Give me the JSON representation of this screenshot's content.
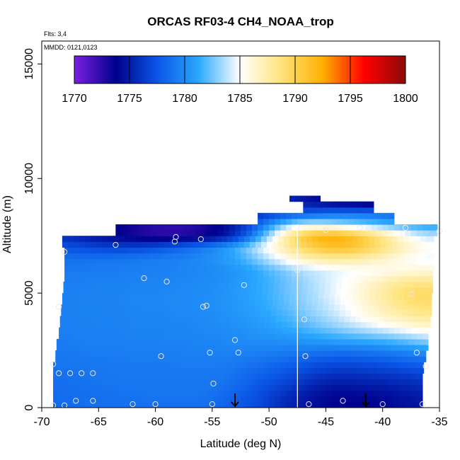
{
  "chart_data": {
    "type": "heatmap",
    "title": "ORCAS RF03-4 CH4_NOAA_trop",
    "annotations": {
      "flights": "Flts: 3,4",
      "dates": "MMDD: 0121,0123"
    },
    "xlabel": "Latitude (deg N)",
    "ylabel": "Altitude (m)",
    "xlim": [
      -70,
      -35
    ],
    "ylim": [
      0,
      16000
    ],
    "x_ticks": [
      -70,
      -65,
      -60,
      -55,
      -50,
      -45,
      -40,
      -35
    ],
    "y_ticks": [
      0,
      5000,
      10000,
      15000
    ],
    "colorbar": {
      "ticks": [
        1770,
        1775,
        1780,
        1785,
        1790,
        1795,
        1800
      ],
      "range": [
        1770,
        1800
      ],
      "colors": [
        "#7a1fe0",
        "#00008c",
        "#0a55e6",
        "#2aa8ff",
        "#ffffff",
        "#ffe37a",
        "#ffb000",
        "#ff0000",
        "#8c0a0a"
      ],
      "placement": "top"
    },
    "field": {
      "lat": [
        -69,
        -68,
        -67,
        -66,
        -65,
        -64,
        -63,
        -62,
        -61,
        -60,
        -59,
        -58,
        -57,
        -56,
        -55,
        -54,
        -53,
        -52,
        -51,
        -50,
        -49,
        -48,
        -47,
        -46,
        -45,
        -44,
        -43,
        -42,
        -41,
        -40,
        -39,
        -38,
        -37,
        -36
      ],
      "alt": [
        0,
        500,
        1000,
        1500,
        2000,
        2500,
        3000,
        3500,
        4000,
        4500,
        5000,
        5500,
        6000,
        6500,
        7000,
        7500,
        8000,
        8500,
        9000
      ],
      "ch4": [
        [
          1778.4,
          1778.5,
          1778.6,
          1778.6,
          1778.7,
          1778.7,
          1778.7,
          1778.8,
          1778.8,
          1778.8,
          1778.8,
          1778.8,
          1778.8,
          1778.8,
          1778.5,
          1778.2,
          1777.8,
          1777.4,
          1777.0,
          1776.4,
          1775.8,
          1775.2,
          1774.7,
          1774.3,
          1774.0,
          1773.8,
          1773.8,
          1773.8,
          1773.9,
          1774.0,
          1774.2,
          1774.4,
          1774.6,
          1774.8
        ],
        [
          1778.5,
          1778.6,
          1778.6,
          1778.7,
          1778.7,
          1778.8,
          1778.8,
          1778.8,
          1778.9,
          1778.9,
          1778.9,
          1778.9,
          1778.9,
          1778.9,
          1778.7,
          1778.4,
          1778.0,
          1777.6,
          1777.2,
          1776.6,
          1776.0,
          1775.4,
          1774.9,
          1774.5,
          1774.2,
          1774.0,
          1774.0,
          1774.0,
          1774.1,
          1774.2,
          1774.4,
          1774.6,
          1774.8,
          1775.0
        ],
        [
          1778.6,
          1778.7,
          1778.7,
          1778.8,
          1778.9,
          1778.9,
          1779.0,
          1779.0,
          1779.0,
          1779.0,
          1779.0,
          1779.0,
          1779.0,
          1779.0,
          1779.0,
          1778.8,
          1778.5,
          1778.1,
          1777.6,
          1777.2,
          1776.8,
          1776.3,
          1775.8,
          1775.3,
          1775.0,
          1774.8,
          1774.8,
          1774.9,
          1775.0,
          1775.1,
          1775.2,
          1775.4,
          1775.6,
          1775.8
        ],
        [
          1778.8,
          1778.8,
          1778.9,
          1778.9,
          1779.0,
          1779.0,
          1779.1,
          1779.1,
          1779.1,
          1779.1,
          1779.1,
          1779.1,
          1779.1,
          1779.1,
          1779.1,
          1779.0,
          1778.8,
          1778.5,
          1778.2,
          1777.9,
          1777.6,
          1777.2,
          1776.8,
          1776.4,
          1776.1,
          1775.9,
          1775.9,
          1776.0,
          1776.1,
          1776.2,
          1776.3,
          1776.5,
          1776.7,
          1776.9
        ],
        [
          1779.0,
          1779.0,
          1779.1,
          1779.1,
          1779.1,
          1779.2,
          1779.2,
          1779.2,
          1779.2,
          1779.2,
          1779.2,
          1779.3,
          1779.3,
          1779.3,
          1779.3,
          1779.3,
          1779.2,
          1779.0,
          1778.8,
          1778.6,
          1778.4,
          1778.1,
          1777.8,
          1777.5,
          1777.3,
          1777.2,
          1777.2,
          1777.3,
          1777.4,
          1777.6,
          1777.8,
          1778.0,
          1778.2,
          1778.4
        ],
        [
          1779.2,
          1779.2,
          1779.2,
          1779.3,
          1779.3,
          1779.3,
          1779.3,
          1779.4,
          1779.4,
          1779.4,
          1779.4,
          1779.4,
          1779.5,
          1779.5,
          1779.5,
          1779.6,
          1779.6,
          1779.6,
          1779.6,
          1779.5,
          1779.4,
          1779.3,
          1779.2,
          1779.1,
          1779.0,
          1779.0,
          1779.0,
          1779.1,
          1779.2,
          1779.4,
          1779.6,
          1779.9,
          1780.2,
          1780.5
        ],
        [
          1779.3,
          1779.3,
          1779.4,
          1779.4,
          1779.4,
          1779.4,
          1779.5,
          1779.5,
          1779.5,
          1779.5,
          1779.6,
          1779.6,
          1779.6,
          1779.7,
          1779.7,
          1779.8,
          1779.9,
          1780.0,
          1780.1,
          1780.2,
          1780.3,
          1780.4,
          1780.6,
          1780.8,
          1781.0,
          1781.2,
          1781.4,
          1781.6,
          1781.8,
          1782.0,
          1782.3,
          1782.6,
          1783.0,
          1783.4
        ],
        [
          1779.4,
          1779.4,
          1779.5,
          1779.5,
          1779.5,
          1779.5,
          1779.5,
          1779.6,
          1779.6,
          1779.6,
          1779.6,
          1779.7,
          1779.7,
          1779.8,
          1779.9,
          1780.0,
          1780.1,
          1780.3,
          1780.5,
          1780.8,
          1781.1,
          1781.4,
          1781.8,
          1782.2,
          1782.6,
          1783.0,
          1783.4,
          1783.8,
          1784.2,
          1784.6,
          1785.0,
          1785.4,
          1785.8,
          1786.0
        ],
        [
          1779.5,
          1779.5,
          1779.5,
          1779.5,
          1779.6,
          1779.6,
          1779.6,
          1779.6,
          1779.7,
          1779.7,
          1779.7,
          1779.8,
          1779.8,
          1779.9,
          1780.0,
          1780.2,
          1780.4,
          1780.6,
          1780.9,
          1781.2,
          1781.6,
          1782.0,
          1782.5,
          1783.0,
          1783.5,
          1784.0,
          1784.6,
          1785.2,
          1785.8,
          1786.4,
          1787.0,
          1787.4,
          1787.8,
          1788.0
        ],
        [
          1779.5,
          1779.5,
          1779.5,
          1779.6,
          1779.6,
          1779.6,
          1779.6,
          1779.7,
          1779.7,
          1779.7,
          1779.8,
          1779.8,
          1779.9,
          1780.0,
          1780.1,
          1780.3,
          1780.5,
          1780.8,
          1781.1,
          1781.5,
          1781.9,
          1782.4,
          1782.9,
          1783.4,
          1783.9,
          1784.5,
          1785.1,
          1785.8,
          1786.5,
          1787.2,
          1787.9,
          1788.5,
          1788.9,
          1789.0
        ],
        [
          1779.5,
          1779.5,
          1779.5,
          1779.6,
          1779.6,
          1779.6,
          1779.6,
          1779.7,
          1779.7,
          1779.7,
          1779.8,
          1779.8,
          1779.9,
          1780.0,
          1780.1,
          1780.3,
          1780.6,
          1780.9,
          1781.2,
          1781.6,
          1782.1,
          1782.6,
          1783.1,
          1783.6,
          1784.2,
          1784.8,
          1785.4,
          1786.1,
          1786.9,
          1787.7,
          1788.5,
          1789.1,
          1789.4,
          1789.4
        ],
        [
          1779.4,
          1779.4,
          1779.4,
          1779.4,
          1779.5,
          1779.5,
          1779.5,
          1779.6,
          1779.6,
          1779.6,
          1779.7,
          1779.7,
          1779.8,
          1779.9,
          1780.0,
          1780.2,
          1780.5,
          1780.8,
          1781.2,
          1781.6,
          1782.1,
          1782.6,
          1783.2,
          1783.7,
          1784.2,
          1784.7,
          1785.2,
          1785.8,
          1786.4,
          1787.0,
          1787.6,
          1788.0,
          1788.2,
          1788.2
        ],
        [
          1779.2,
          1779.2,
          1779.2,
          1779.2,
          1779.3,
          1779.3,
          1779.3,
          1779.4,
          1779.4,
          1779.5,
          1779.5,
          1779.6,
          1779.7,
          1779.8,
          1779.9,
          1780.1,
          1780.4,
          1780.8,
          1781.3,
          1781.9,
          1782.5,
          1783.1,
          1783.6,
          1784.0,
          1784.3,
          1784.6,
          1784.8,
          1785.0,
          1785.2,
          1785.4,
          1785.6,
          1785.8,
          1786.0,
          1786.0
        ],
        [
          1778.8,
          1778.8,
          1778.8,
          1778.8,
          1778.9,
          1778.9,
          1779.0,
          1779.1,
          1779.2,
          1779.3,
          1779.4,
          1779.5,
          1779.7,
          1779.9,
          1780.2,
          1780.6,
          1781.2,
          1781.9,
          1782.8,
          1783.8,
          1784.8,
          1785.8,
          1786.7,
          1787.3,
          1787.7,
          1787.8,
          1787.7,
          1787.4,
          1787.0,
          1786.5,
          1786.0,
          1785.5,
          1785.0,
          1784.6
        ],
        [
          1777.6,
          1777.4,
          1777.2,
          1777.0,
          1776.8,
          1776.7,
          1776.7,
          1776.8,
          1777.0,
          1777.3,
          1777.7,
          1778.1,
          1778.6,
          1779.1,
          1779.7,
          1780.4,
          1781.4,
          1782.6,
          1784.0,
          1785.5,
          1787.0,
          1788.4,
          1789.6,
          1790.5,
          1791.1,
          1791.3,
          1791.1,
          1790.6,
          1789.8,
          1788.8,
          1787.8,
          1786.8,
          1786.0,
          1785.4
        ],
        [
          1776.0,
          1775.6,
          1775.2,
          1774.8,
          1774.4,
          1774.0,
          1773.6,
          1773.2,
          1772.8,
          1772.6,
          1772.5,
          1772.6,
          1772.8,
          1773.2,
          1773.8,
          1774.6,
          1776.0,
          1778.0,
          1780.6,
          1783.4,
          1786.2,
          1788.6,
          1790.6,
          1791.8,
          1792.4,
          1792.4,
          1791.8,
          1790.8,
          1789.6,
          1788.2,
          1786.8,
          1785.6,
          1784.6,
          1784.0
        ],
        [
          1776.0,
          1775.6,
          1775.2,
          1774.8,
          1774.4,
          1774.0,
          1773.6,
          1773.2,
          1772.8,
          1772.5,
          1772.3,
          1772.3,
          1772.5,
          1772.9,
          1773.4,
          1774.0,
          1775.0,
          1776.4,
          1778.2,
          1780.2,
          1782.0,
          1783.4,
          1784.2,
          1784.4,
          1784.2,
          1783.8,
          1783.4,
          1783.0,
          1782.6,
          1782.2,
          1781.8,
          1781.4,
          1781.0,
          1780.8
        ],
        [
          1776.0,
          1775.6,
          1775.2,
          1774.8,
          1774.4,
          1774.0,
          1773.6,
          1773.2,
          1772.8,
          1772.5,
          1772.3,
          1772.3,
          1772.5,
          1772.9,
          1773.4,
          1774.0,
          1774.6,
          1775.2,
          1775.8,
          1776.3,
          1776.8,
          1777.2,
          1777.6,
          1778.0,
          1778.3,
          1778.5,
          1778.6,
          1778.6,
          1778.5,
          1778.3,
          1778.1,
          1777.9,
          1777.7,
          1777.5
        ],
        [
          1776.0,
          1775.6,
          1775.2,
          1774.8,
          1774.4,
          1774.0,
          1773.6,
          1773.2,
          1772.8,
          1772.5,
          1772.3,
          1772.3,
          1772.5,
          1772.9,
          1773.4,
          1774.0,
          1774.4,
          1774.8,
          1775.1,
          1775.3,
          1775.4,
          1775.2,
          1774.8,
          1774.3,
          1773.8,
          1773.3,
          1773.0,
          1772.8,
          1772.7,
          1772.7,
          1772.8,
          1773.0,
          1773.2,
          1773.4
        ]
      ],
      "coverage": [
        {
          "alt": 0,
          "lat": [
            -69.0,
            -36.5
          ]
        },
        {
          "alt": 500,
          "lat": [
            -69.0,
            -36.5
          ]
        },
        {
          "alt": 1000,
          "lat": [
            -69.0,
            -36.5
          ]
        },
        {
          "alt": 1500,
          "lat": [
            -69.0,
            -36.4
          ]
        },
        {
          "alt": 2000,
          "lat": [
            -68.8,
            -36.2
          ]
        },
        {
          "alt": 2500,
          "lat": [
            -68.7,
            -36.0
          ]
        },
        {
          "alt": 3000,
          "lat": [
            -68.5,
            -36.0
          ]
        },
        {
          "alt": 3500,
          "lat": [
            -68.4,
            -35.8
          ]
        },
        {
          "alt": 4000,
          "lat": [
            -68.3,
            -35.7
          ]
        },
        {
          "alt": 4500,
          "lat": [
            -68.2,
            -35.7
          ]
        },
        {
          "alt": 5000,
          "lat": [
            -68.1,
            -35.6
          ]
        },
        {
          "alt": 5500,
          "lat": [
            -68.0,
            -35.6
          ]
        },
        {
          "alt": 6000,
          "lat": [
            -68.0,
            -35.5
          ]
        },
        {
          "alt": 6500,
          "lat": [
            -68.0,
            -35.5
          ]
        },
        {
          "alt": 7000,
          "lat": [
            -68.2,
            -35.5
          ]
        },
        {
          "alt": 7500,
          "lat": [
            -63.5,
            -35.2
          ]
        },
        {
          "alt": 8000,
          "lat": [
            -51.0,
            -39.0
          ]
        },
        {
          "alt": 8500,
          "lat": [
            -47.0,
            -40.8
          ]
        },
        {
          "alt": 9000,
          "lat": [
            -48.2,
            -45.5
          ]
        }
      ]
    },
    "flight_path_points": [
      {
        "lat": -69.0,
        "alt": 100
      },
      {
        "lat": -68.0,
        "alt": 100
      },
      {
        "lat": -67.0,
        "alt": 300
      },
      {
        "lat": -65.5,
        "alt": 300
      },
      {
        "lat": -62.0,
        "alt": 150
      },
      {
        "lat": -60.0,
        "alt": 150
      },
      {
        "lat": -55.0,
        "alt": 150
      },
      {
        "lat": -46.5,
        "alt": 150
      },
      {
        "lat": -43.5,
        "alt": 300
      },
      {
        "lat": -40.0,
        "alt": 150
      },
      {
        "lat": -36.5,
        "alt": 150
      },
      {
        "lat": -69.0,
        "alt": 1900
      },
      {
        "lat": -68.5,
        "alt": 1500
      },
      {
        "lat": -67.5,
        "alt": 1500
      },
      {
        "lat": -66.5,
        "alt": 1500
      },
      {
        "lat": -65.5,
        "alt": 1500
      },
      {
        "lat": -54.9,
        "alt": 1050
      },
      {
        "lat": -59.5,
        "alt": 2250
      },
      {
        "lat": -55.2,
        "alt": 2400
      },
      {
        "lat": -52.7,
        "alt": 2400
      },
      {
        "lat": -53.0,
        "alt": 2950
      },
      {
        "lat": -46.8,
        "alt": 2250
      },
      {
        "lat": -46.9,
        "alt": 3850
      },
      {
        "lat": -37.0,
        "alt": 2400
      },
      {
        "lat": -36.2,
        "alt": 1800
      },
      {
        "lat": -68.5,
        "alt": 4400
      },
      {
        "lat": -55.8,
        "alt": 4400
      },
      {
        "lat": -55.5,
        "alt": 4450
      },
      {
        "lat": -59.0,
        "alt": 5500
      },
      {
        "lat": -61.0,
        "alt": 5650
      },
      {
        "lat": -52.2,
        "alt": 5350
      },
      {
        "lat": -47.5,
        "alt": 6000
      },
      {
        "lat": -37.5,
        "alt": 4950
      },
      {
        "lat": -68.0,
        "alt": 6800
      },
      {
        "lat": -63.5,
        "alt": 7100
      },
      {
        "lat": -58.2,
        "alt": 7450
      },
      {
        "lat": -58.3,
        "alt": 7250
      },
      {
        "lat": -56.0,
        "alt": 7350
      },
      {
        "lat": -45.0,
        "alt": 7750
      },
      {
        "lat": -42.0,
        "alt": 7850
      },
      {
        "lat": -38.0,
        "alt": 7850
      },
      {
        "lat": -35.0,
        "alt": 7700
      }
    ],
    "dividing_line": {
      "lat": -47.5,
      "alt_range": [
        0,
        8000
      ]
    },
    "arrows": [
      {
        "lat": -53.0
      },
      {
        "lat": -41.5
      }
    ]
  }
}
